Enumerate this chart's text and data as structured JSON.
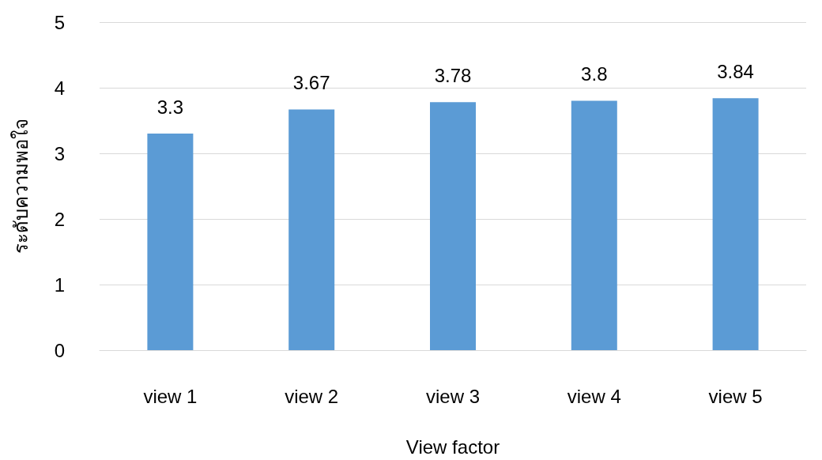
{
  "chart_data": {
    "type": "bar",
    "xlabel": "View factor",
    "ylabel": "ระดับความพอใจ",
    "categories": [
      "view 1",
      "view 2",
      "view 3",
      "view 4",
      "view 5"
    ],
    "values": [
      3.3,
      3.67,
      3.78,
      3.8,
      3.84
    ],
    "color": "#5b9bd5",
    "ylim": [
      0,
      5
    ],
    "yticks": [
      0,
      1,
      2,
      3,
      4,
      5
    ],
    "grid": "y",
    "data_labels": true
  }
}
